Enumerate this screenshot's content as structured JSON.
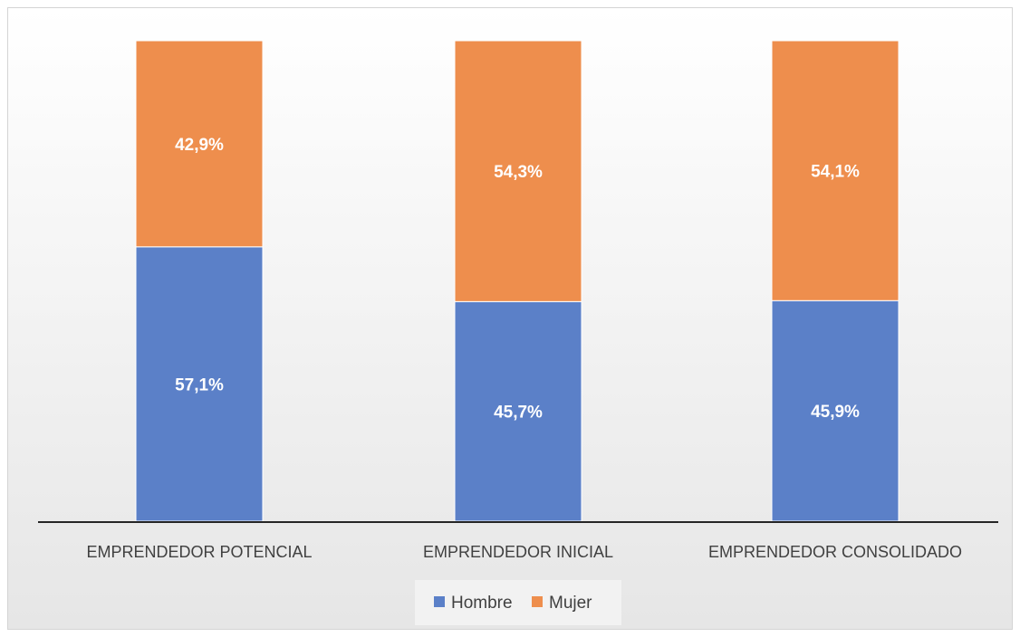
{
  "chart_data": {
    "type": "bar",
    "stacked": true,
    "categories": [
      "EMPRENDEDOR POTENCIAL",
      "EMPRENDEDOR INICIAL",
      "EMPRENDEDOR CONSOLIDADO"
    ],
    "series": [
      {
        "name": "Hombre",
        "values": [
          57.1,
          45.7,
          45.9
        ],
        "labels": [
          "57,1%",
          "45,7%",
          "45,9%"
        ],
        "color": "#5b80c8"
      },
      {
        "name": "Mujer",
        "values": [
          42.9,
          54.3,
          54.1
        ],
        "labels": [
          "42,9%",
          "54,3%",
          "54,1%"
        ],
        "color": "#ee8e4d"
      }
    ],
    "ylim": [
      0,
      100
    ],
    "grid": false,
    "legend": "bottom",
    "background": "#f2f2f2"
  }
}
